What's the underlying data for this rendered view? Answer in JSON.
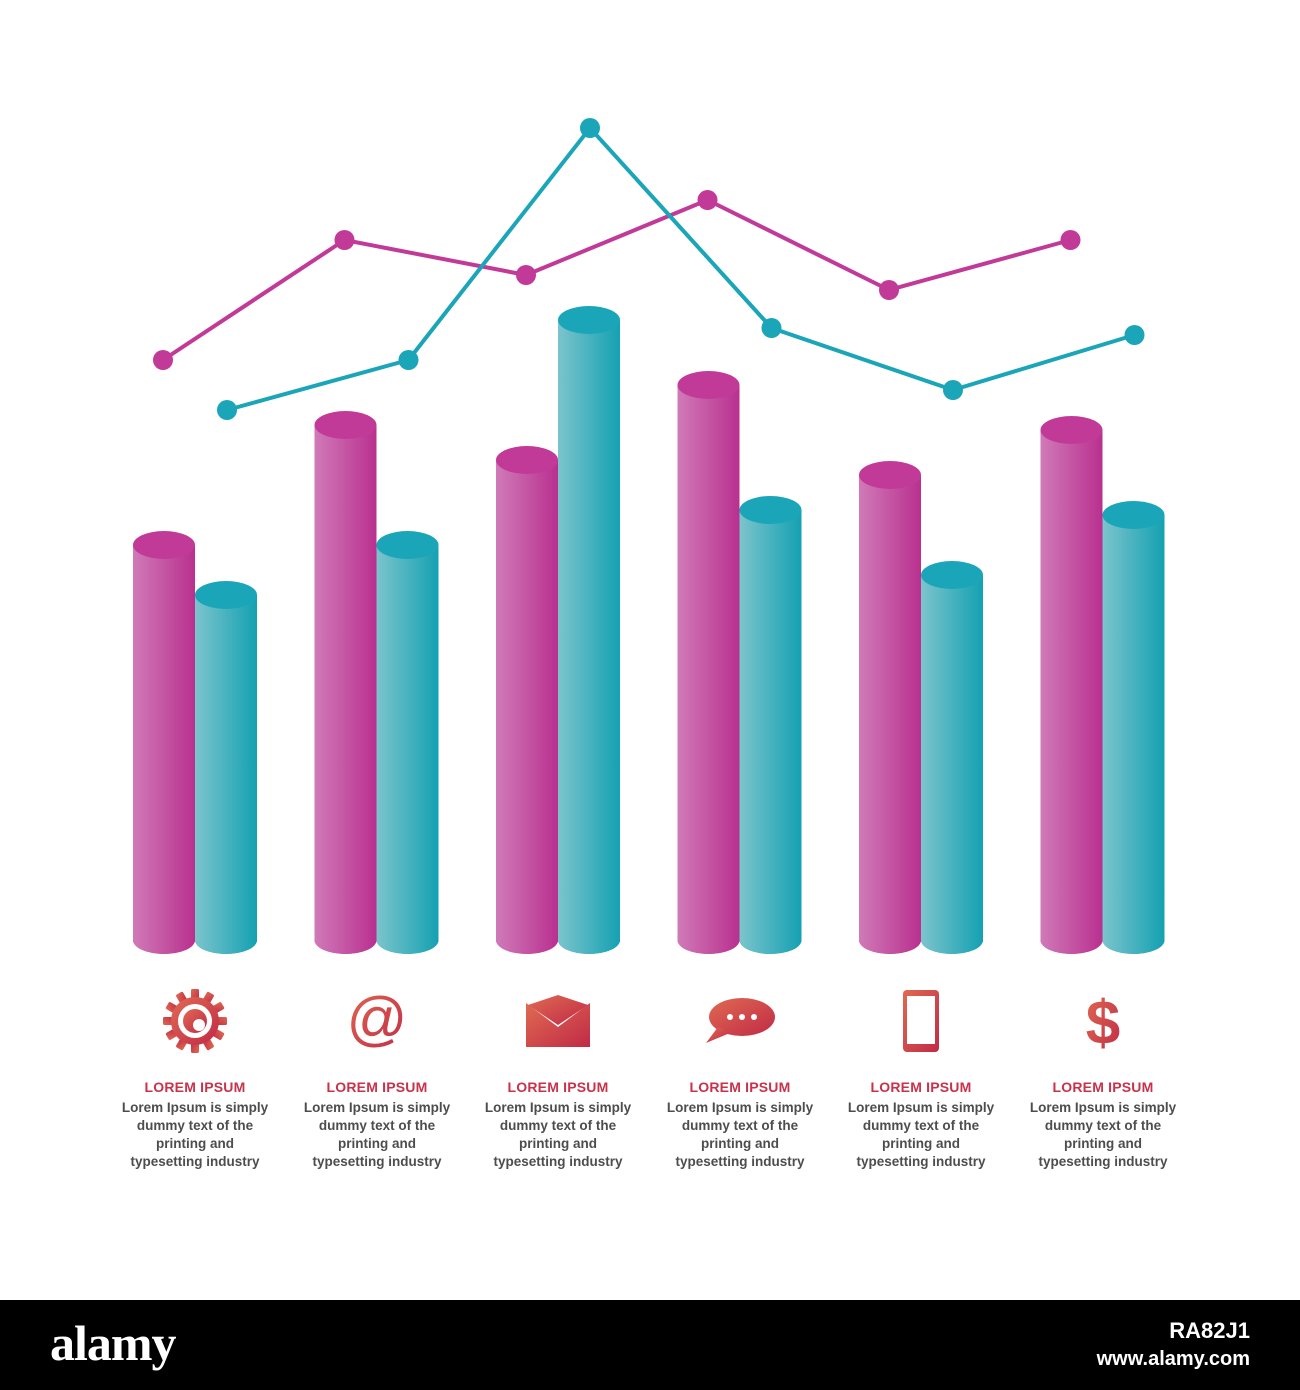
{
  "chart_data": {
    "type": "bar",
    "categories": [
      "",
      "",
      "",
      "",
      "",
      ""
    ],
    "series": [
      {
        "kind": "bar",
        "values": [
          395,
          515,
          480,
          555,
          465,
          510
        ]
      },
      {
        "kind": "bar",
        "values": [
          345,
          395,
          620,
          430,
          365,
          425
        ]
      },
      {
        "kind": "line",
        "values": [
          580,
          700,
          665,
          740,
          650,
          700
        ]
      },
      {
        "kind": "line",
        "values": [
          530,
          580,
          812,
          612,
          550,
          605
        ]
      }
    ],
    "ylim": [
      0,
      860
    ],
    "grid": false,
    "colors": {
      "magenta": "#c23a98",
      "teal": "#1ba5b8"
    }
  },
  "items": [
    {
      "icon": "gear-icon",
      "title": "LOREM IPSUM",
      "desc": "Lorem Ipsum is simply dummy text of the printing and typesetting industry"
    },
    {
      "icon": "at-sign-icon",
      "title": "LOREM IPSUM",
      "desc": "Lorem Ipsum is simply dummy text of the printing and typesetting industry"
    },
    {
      "icon": "envelope-icon",
      "title": "LOREM IPSUM",
      "desc": "Lorem Ipsum is simply dummy text of the printing and typesetting industry"
    },
    {
      "icon": "chat-bubble-icon",
      "title": "LOREM IPSUM",
      "desc": "Lorem Ipsum is simply dummy text of the printing and typesetting industry"
    },
    {
      "icon": "smartphone-icon",
      "title": "LOREM IPSUM",
      "desc": "Lorem Ipsum is simply dummy text of the printing and typesetting industry"
    },
    {
      "icon": "dollar-icon",
      "title": "LOREM IPSUM",
      "desc": "Lorem Ipsum is simply dummy text of the printing and typesetting industry"
    }
  ],
  "footer": {
    "brand": "alamy",
    "image_id": "RA82J1",
    "site": "www.alamy.com"
  }
}
